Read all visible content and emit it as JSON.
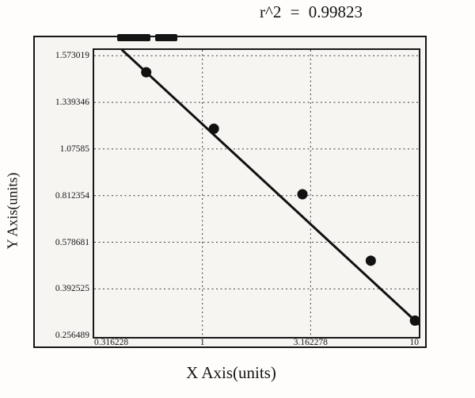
{
  "chart_data": {
    "type": "scatter",
    "title": "r^2 = 0.99823",
    "r_squared": 0.99823,
    "xlabel": "X Axis(units)",
    "ylabel": "Y Axis(units)",
    "x_scale": "log",
    "xlim": [
      0.316228,
      10
    ],
    "ylim": [
      0.256489,
      1.573019
    ],
    "x": [
      0.55,
      1.13,
      2.9,
      6.0,
      9.6
    ],
    "y": [
      1.49,
      1.19,
      0.82,
      0.505,
      0.3
    ],
    "x_ticks": [
      0.316228,
      1,
      3.162278,
      10
    ],
    "x_tick_labels": [
      "0.316228",
      "1",
      "3.162278",
      "10"
    ],
    "y_ticks": [
      1.573019,
      1.339346,
      1.07585,
      0.812354,
      0.578681,
      0.392525,
      0.256489
    ],
    "y_tick_labels": [
      "1.573019",
      "1.339346",
      "1.07585",
      "0.812354",
      "0.578681",
      "0.392525",
      "0.256489"
    ],
    "grid": "dashed",
    "legend": "none",
    "line_color": "#111111",
    "marker_color": "#111111",
    "grid_color": "#3c3c3c"
  }
}
